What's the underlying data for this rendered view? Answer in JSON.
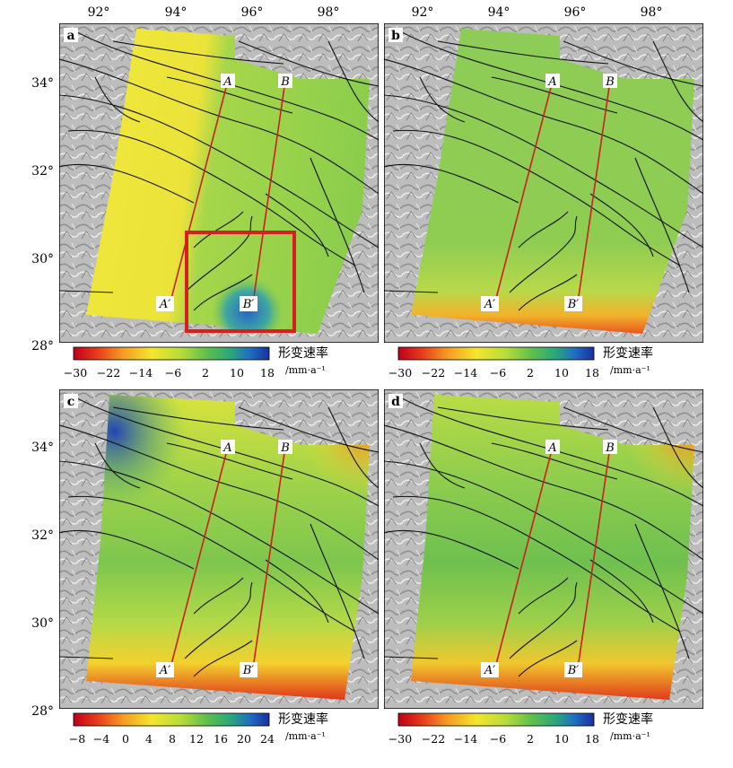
{
  "top_lon_ticks": [
    "92°",
    "94°",
    "96°",
    "98°"
  ],
  "top_lon_ticks_right": [
    "92°",
    "94°",
    "96°",
    "98°"
  ],
  "lat_ticks_top": [
    "34°",
    "32°",
    "30°",
    "28°"
  ],
  "lat_ticks_bottom": [
    "34°",
    "32°",
    "30°",
    "28°"
  ],
  "panels": [
    {
      "letter": "a",
      "profile_labels": [
        "A",
        "B",
        "A′",
        "B′"
      ],
      "legend": {
        "title": "形变速率",
        "unit": "/mm·a⁻¹",
        "ticks": [
          "−30",
          "−22",
          "−14",
          "−6",
          "2",
          "10",
          "18"
        ]
      },
      "highlight_box": true
    },
    {
      "letter": "b",
      "profile_labels": [
        "A",
        "B",
        "A′",
        "B′"
      ],
      "legend": {
        "title": "形变速率",
        "unit": "/mm·a⁻¹",
        "ticks": [
          "−30",
          "−22",
          "−14",
          "−6",
          "2",
          "10",
          "18"
        ]
      },
      "highlight_box": false
    },
    {
      "letter": "c",
      "profile_labels": [
        "A",
        "B",
        "A′",
        "B′"
      ],
      "legend": {
        "title": "形变速率",
        "unit": "/mm·a⁻¹",
        "ticks": [
          "−8",
          "−4",
          "0",
          "4",
          "8",
          "12",
          "16",
          "20",
          "24"
        ]
      },
      "highlight_box": false
    },
    {
      "letter": "d",
      "profile_labels": [
        "A",
        "B",
        "A′",
        "B′"
      ],
      "legend": {
        "title": "形变速率",
        "unit": "/mm·a⁻¹",
        "ticks": [
          "−30",
          "−22",
          "−14",
          "−6",
          "2",
          "10",
          "18"
        ]
      },
      "highlight_box": false
    }
  ],
  "colors": {
    "ramp": [
      "#c0001a",
      "#e63b1b",
      "#f59a22",
      "#f3e62c",
      "#b7dc3a",
      "#5fc04b",
      "#2ba87a",
      "#1f6fc0",
      "#1a2fa0"
    ],
    "profile_line": "#cc1f1f",
    "highlight_box": "#d61f1f",
    "fault": "#111111",
    "hillshade": "#b9b9b9"
  }
}
